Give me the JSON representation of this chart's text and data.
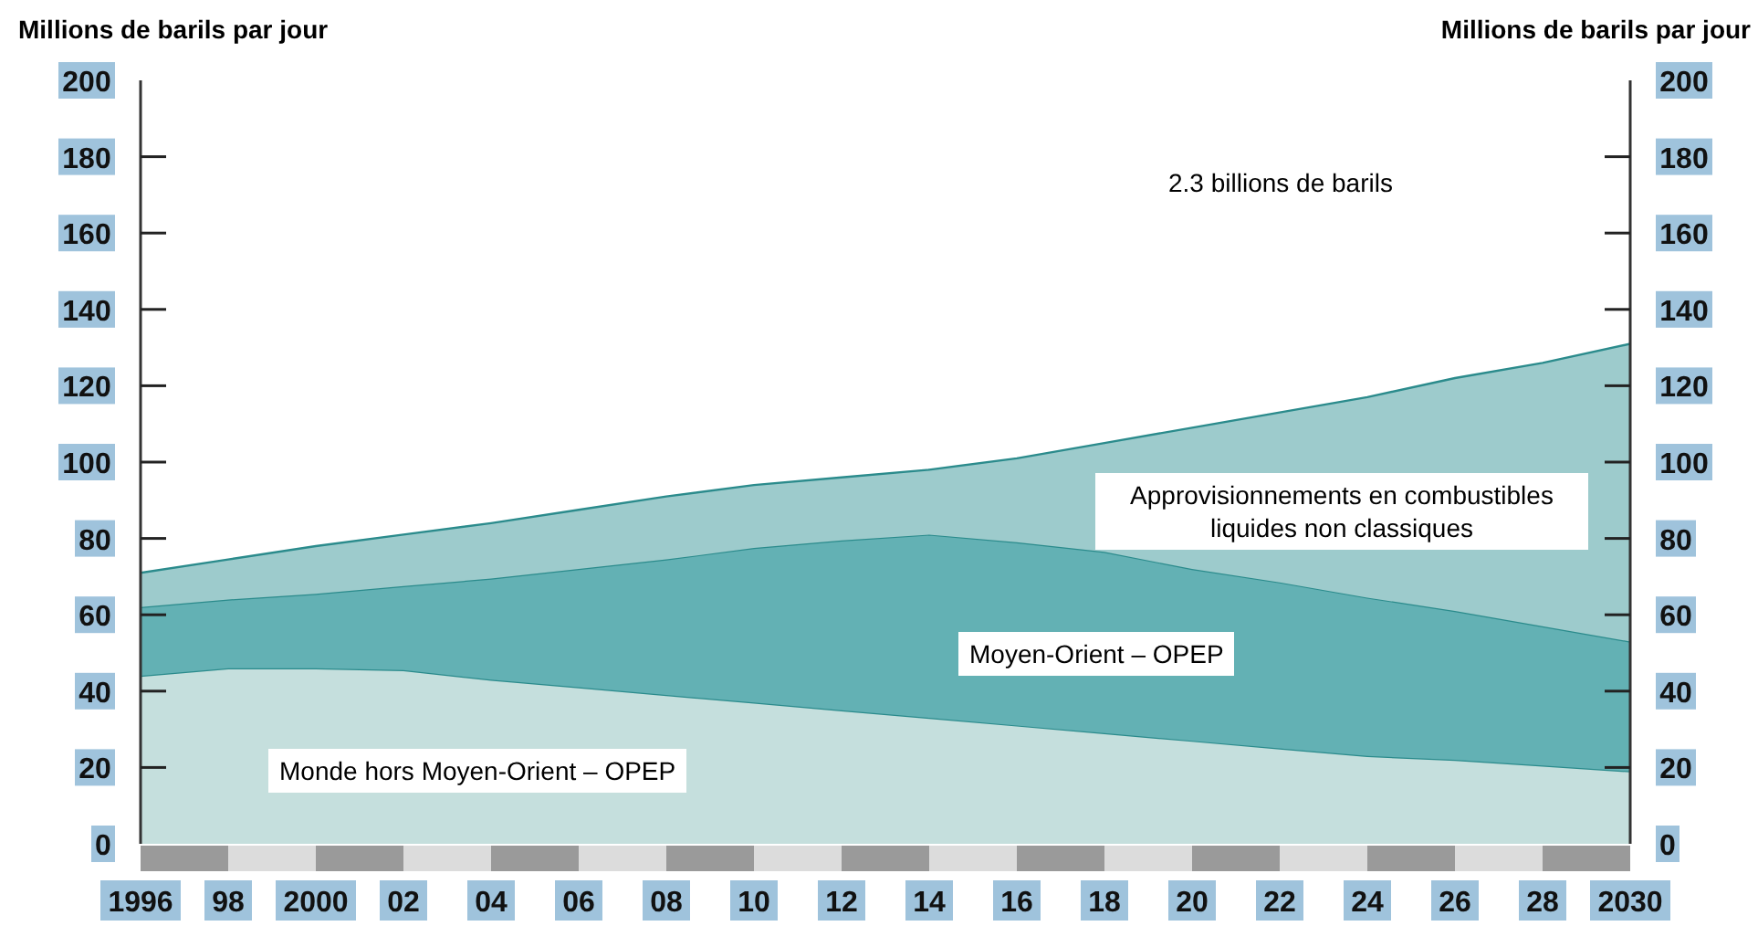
{
  "chart_data": {
    "type": "area",
    "stacked": true,
    "ylabel": "Millions de barils par jour",
    "y2label": "Millions de barils par jour",
    "annotations": [
      "2.3 billions de barils"
    ],
    "x": [
      1996,
      1998,
      2000,
      2002,
      2004,
      2006,
      2008,
      2010,
      2012,
      2014,
      2016,
      2018,
      2020,
      2022,
      2024,
      2026,
      2028,
      2030
    ],
    "xlim": [
      1996,
      2030
    ],
    "xticks": [
      1996,
      {
        "value": 1998,
        "label": "98"
      },
      2000,
      {
        "value": 2002,
        "label": "02"
      },
      {
        "value": 2004,
        "label": "04"
      },
      {
        "value": 2006,
        "label": "06"
      },
      {
        "value": 2008,
        "label": "08"
      },
      {
        "value": 2010,
        "label": "10"
      },
      {
        "value": 2012,
        "label": "12"
      },
      {
        "value": 2014,
        "label": "14"
      },
      {
        "value": 2016,
        "label": "16"
      },
      {
        "value": 2018,
        "label": "18"
      },
      {
        "value": 2020,
        "label": "20"
      },
      {
        "value": 2022,
        "label": "22"
      },
      {
        "value": 2024,
        "label": "24"
      },
      {
        "value": 2026,
        "label": "26"
      },
      {
        "value": 2028,
        "label": "28"
      },
      2030
    ],
    "ylim": [
      0,
      200
    ],
    "yticks": [
      0,
      20,
      40,
      60,
      80,
      100,
      120,
      140,
      160,
      180,
      200
    ],
    "y2lim": [
      0,
      200
    ],
    "y2ticks": [
      0,
      20,
      40,
      60,
      80,
      100,
      120,
      140,
      160,
      180,
      200
    ],
    "series": [
      {
        "name": "Monde hors Moyen-Orient – OPEP",
        "color": "#c5dfdd",
        "values": [
          44,
          46,
          46,
          45.5,
          43,
          41,
          39,
          37,
          35,
          33,
          31,
          29,
          27,
          25,
          23,
          22,
          20.5,
          19
        ]
      },
      {
        "name": "Moyen-Orient – OPEP",
        "color": "#63b1b4",
        "values": [
          18,
          18,
          19.5,
          22,
          26.5,
          31,
          35.5,
          40.5,
          44.5,
          48,
          48,
          47.5,
          45,
          43.5,
          41.5,
          39,
          36.5,
          34
        ]
      },
      {
        "name": "Approvisionnements en combustibles liquides non classiques",
        "color": "#9dcbcc",
        "values": [
          9,
          10.5,
          12.5,
          13.5,
          14.5,
          15.5,
          16.5,
          16.5,
          16.5,
          17,
          22,
          28.5,
          37,
          44.5,
          52.5,
          61,
          69,
          78
        ]
      }
    ]
  }
}
